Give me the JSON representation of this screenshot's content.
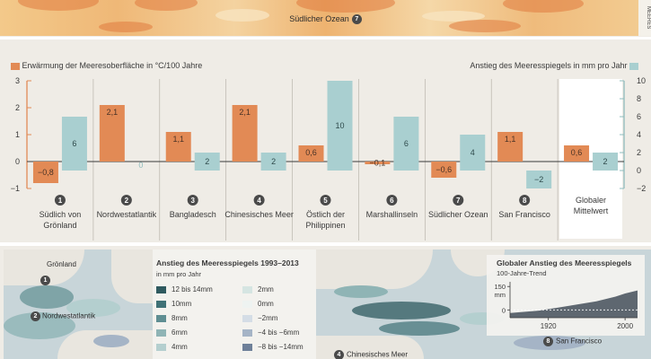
{
  "top_map": {
    "label": "Südlicher Ozean",
    "number": "7",
    "side_text": "MEERES"
  },
  "chart_data": {
    "type": "bar",
    "legend_left": "Erwärmung der Meeresoberfläche in °C/100 Jahre",
    "legend_right": "Anstieg des Meeresspiegels in mm pro Jahr",
    "left_axis": {
      "ylim": [
        -1,
        3
      ],
      "ticks": [
        "3",
        "2",
        "1",
        "0",
        "−1"
      ]
    },
    "right_axis": {
      "ylim": [
        -2,
        10
      ],
      "ticks": [
        "10",
        "8",
        "6",
        "4",
        "2",
        "0",
        "−2"
      ]
    },
    "colors": {
      "warming": "#e28a55",
      "sealevel": "#a9cfd0"
    },
    "categories": [
      {
        "number": "1",
        "lines": [
          "Südlich von",
          "Grönland"
        ],
        "warming": -0.8,
        "warming_label": "−0,8",
        "sealevel": 6,
        "sealevel_label": "6"
      },
      {
        "number": "2",
        "lines": [
          "Nordwestatlantik"
        ],
        "warming": 2.1,
        "warming_label": "2,1",
        "sealevel": 0,
        "sealevel_label": "0"
      },
      {
        "number": "3",
        "lines": [
          "Bangladesch"
        ],
        "warming": 1.1,
        "warming_label": "1,1",
        "sealevel": 2,
        "sealevel_label": "2"
      },
      {
        "number": "4",
        "lines": [
          "Chinesisches Meer"
        ],
        "warming": 2.1,
        "warming_label": "2,1",
        "sealevel": 2,
        "sealevel_label": "2"
      },
      {
        "number": "5",
        "lines": [
          "Östlich der",
          "Philippinen"
        ],
        "warming": 0.6,
        "warming_label": "0,6",
        "sealevel": 10,
        "sealevel_label": "10"
      },
      {
        "number": "6",
        "lines": [
          "Marshallinseln"
        ],
        "warming": -0.1,
        "warming_label": "−0,1",
        "sealevel": 6,
        "sealevel_label": "6"
      },
      {
        "number": "7",
        "lines": [
          "Südlicher Ozean"
        ],
        "warming": -0.6,
        "warming_label": "−0,6",
        "sealevel": 4,
        "sealevel_label": "4"
      },
      {
        "number": "8",
        "lines": [
          "San Francisco"
        ],
        "warming": 1.1,
        "warming_label": "1,1",
        "sealevel": -2,
        "sealevel_label": "−2"
      },
      {
        "number": "",
        "lines": [
          "Globaler",
          "Mittelwert"
        ],
        "warming": 0.6,
        "warming_label": "0,6",
        "sealevel": 2,
        "sealevel_label": "2"
      }
    ]
  },
  "sea_level_legend": {
    "title": "Anstieg des Meeresspiegels 1993–2013",
    "subtitle": "in mm pro Jahr",
    "items_left": [
      {
        "label": "12 bis 14mm",
        "color": "#2f5a5f"
      },
      {
        "label": "10mm",
        "color": "#3f7176"
      },
      {
        "label": "8mm",
        "color": "#5f8e92"
      },
      {
        "label": "6mm",
        "color": "#8fb4b5"
      },
      {
        "label": "4mm",
        "color": "#b4cfcf"
      }
    ],
    "items_right": [
      {
        "label": "2mm",
        "color": "#d5e5e2"
      },
      {
        "label": "0mm",
        "color": "#eef3f1"
      },
      {
        "label": "−2mm",
        "color": "#d4dde6"
      },
      {
        "label": "−4 bis −6mm",
        "color": "#a5b4c6"
      },
      {
        "label": "−8 bis −14mm",
        "color": "#6e8099"
      }
    ]
  },
  "left_map": {
    "label_1": "Grönland",
    "number_1": "1",
    "label_2": "Nordwestatlantik",
    "number_2": "2"
  },
  "right_map": {
    "label_8": "San Francisco",
    "number_8": "8",
    "label_4": "Chinesisches Meer",
    "number_4": "4"
  },
  "trend_chart": {
    "title": "Globaler Anstieg des Meeresspiegels",
    "subtitle": "100-Jahre-Trend",
    "unit": "mm",
    "y_ticks": [
      "150",
      "0"
    ],
    "x_ticks": [
      "1920",
      "2000"
    ],
    "ylim": [
      -50,
      180
    ],
    "xlim": [
      1880,
      2013
    ],
    "series": [
      [
        1880,
        -20
      ],
      [
        1890,
        -15
      ],
      [
        1900,
        -10
      ],
      [
        1910,
        -5
      ],
      [
        1920,
        5
      ],
      [
        1930,
        15
      ],
      [
        1940,
        25
      ],
      [
        1950,
        35
      ],
      [
        1960,
        45
      ],
      [
        1970,
        55
      ],
      [
        1980,
        70
      ],
      [
        1990,
        85
      ],
      [
        2000,
        105
      ],
      [
        2013,
        125
      ]
    ]
  }
}
